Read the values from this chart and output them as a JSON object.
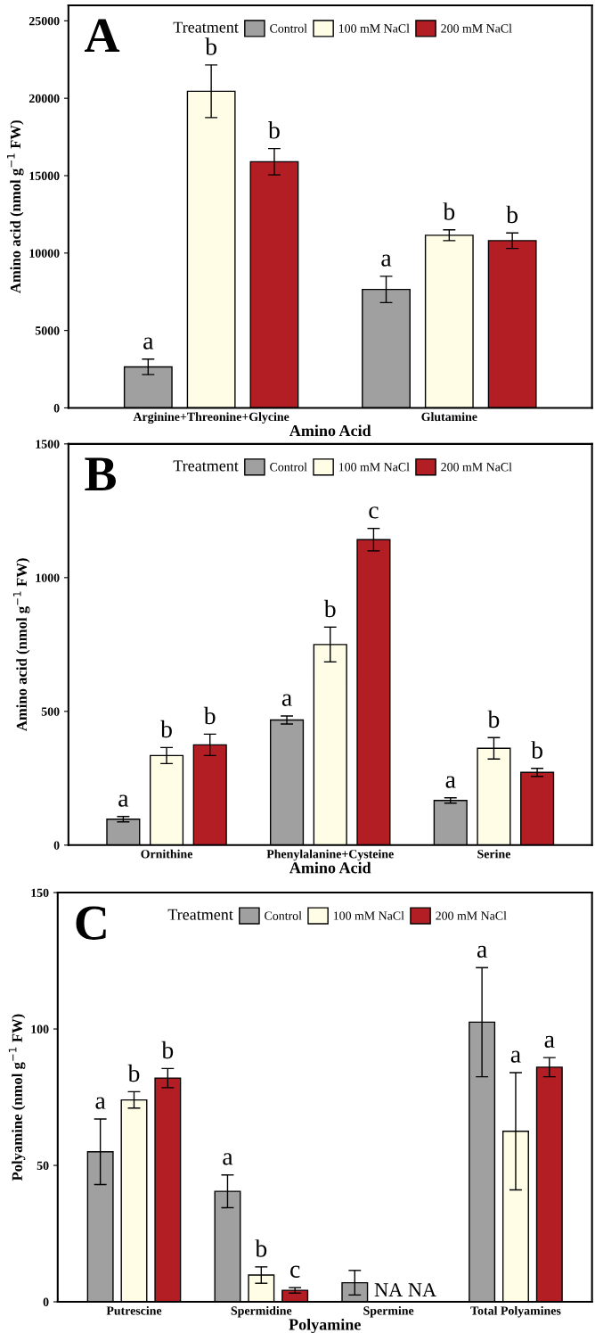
{
  "chart_data": [
    {
      "type": "bar",
      "title": "A",
      "xlabel": "Amino Acid",
      "ylabel": "Amino acid (nmol g$^{−1}$ FW)",
      "legend_title": "Treatment",
      "legend": "top",
      "categories": [
        "Arginine+Threonine+Glycine",
        "Glutamine"
      ],
      "series": [
        {
          "name": "Control",
          "color": "#a0a0a0",
          "values": [
            2650,
            7650
          ],
          "errors": [
            500,
            850
          ],
          "value_labels": [
            "a",
            "a"
          ]
        },
        {
          "name": "100 mM NaCl",
          "color": "#fffde6",
          "values": [
            20450,
            11150
          ],
          "errors": [
            1700,
            350
          ],
          "value_labels": [
            "b",
            "b"
          ]
        },
        {
          "name": "200 mM NaCl",
          "color": "#b21e23",
          "values": [
            15900,
            10800
          ],
          "errors": [
            850,
            500
          ],
          "value_labels": [
            "b",
            "b"
          ]
        }
      ],
      "ylim": [
        0,
        26000
      ],
      "yticks": [
        0,
        5000,
        10000,
        15000,
        20000,
        25000
      ]
    },
    {
      "type": "bar",
      "title": "B",
      "xlabel": "Amino Acid",
      "ylabel": "Amino acid (nmol g$^{−1}$ FW)",
      "legend_title": "Treatment",
      "legend": "top",
      "categories": [
        "Ornithine",
        "Phenylalanine+Cysteine",
        "Serine"
      ],
      "series": [
        {
          "name": "Control",
          "color": "#a0a0a0",
          "values": [
            97,
            468,
            167
          ],
          "errors": [
            10,
            15,
            10
          ],
          "value_labels": [
            "a",
            "a",
            "a"
          ]
        },
        {
          "name": "100 mM NaCl",
          "color": "#fffde6",
          "values": [
            335,
            750,
            362
          ],
          "errors": [
            30,
            65,
            40
          ],
          "value_labels": [
            "b",
            "b",
            "b"
          ]
        },
        {
          "name": "200 mM NaCl",
          "color": "#b21e23",
          "values": [
            375,
            1142,
            272
          ],
          "errors": [
            40,
            42,
            15
          ],
          "value_labels": [
            "b",
            "c",
            "b"
          ]
        }
      ],
      "ylim": [
        0,
        1500
      ],
      "yticks": [
        0,
        500,
        1000,
        1500
      ]
    },
    {
      "type": "bar",
      "title": "C",
      "xlabel": "Polyamine",
      "ylabel": "Polyamine (nmol g$^{−1}$ FW)",
      "legend_title": "Treatment",
      "legend": "top",
      "categories": [
        "Putrescine",
        "Spermidine",
        "Spermine",
        "Total Polyamines"
      ],
      "series": [
        {
          "name": "Control",
          "color": "#a0a0a0",
          "values": [
            55,
            40.5,
            7,
            102.5
          ],
          "errors": [
            12,
            6,
            4.5,
            20
          ],
          "value_labels": [
            "a",
            "a",
            null,
            "a"
          ]
        },
        {
          "name": "100 mM NaCl",
          "color": "#fffde6",
          "values": [
            74,
            9.8,
            null,
            62.5
          ],
          "errors": [
            3,
            3,
            null,
            21.5
          ],
          "value_labels": [
            "b",
            "b",
            "NA",
            "a"
          ]
        },
        {
          "name": "200 mM NaCl",
          "color": "#b21e23",
          "values": [
            82,
            4.2,
            null,
            86
          ],
          "errors": [
            3.5,
            1,
            null,
            3.5
          ],
          "value_labels": [
            "b",
            "c",
            "NA",
            "a"
          ]
        }
      ],
      "ylim": [
        0,
        150
      ],
      "yticks": [
        0,
        50,
        100,
        150
      ]
    }
  ]
}
